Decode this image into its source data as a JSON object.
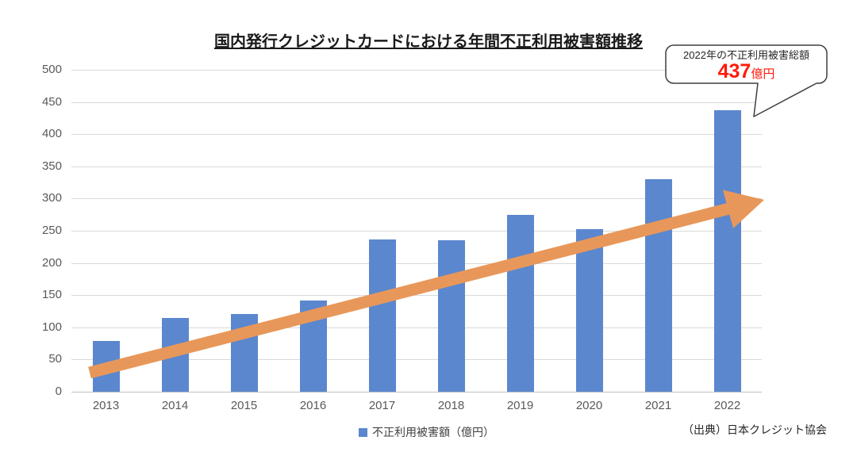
{
  "title": "国内発行クレジットカードにおける年間不正利用被害額推移",
  "callout": {
    "caption": "2022年の不正利用被害総額",
    "value": "437",
    "unit": "億円"
  },
  "legend": {
    "label": "不正利用被害額（億円）"
  },
  "source": "（出典）日本クレジット協会",
  "colors": {
    "background": "#FFFFFF",
    "bar": "#5B87CE",
    "arrow": "#E8975A",
    "grid": "#D9D9D9",
    "baseline": "#C0C0C0",
    "tick_label": "#595959",
    "title_text": "#1A1A1A",
    "legend_text": "#404040",
    "source_text": "#262626",
    "callout_border": "#3F3F3F",
    "callout_caption": "#262626",
    "callout_value": "#FF1A0A"
  },
  "chart_data": {
    "type": "bar",
    "title": "国内発行クレジットカードにおける年間不正利用被害額推移",
    "categories": [
      "2013",
      "2014",
      "2015",
      "2016",
      "2017",
      "2018",
      "2019",
      "2020",
      "2021",
      "2022"
    ],
    "series": [
      {
        "name": "不正利用被害額（億円）",
        "values": [
          78.6,
          114.5,
          120.9,
          142.0,
          236.4,
          235.4,
          274.1,
          253.0,
          330.1,
          436.7
        ]
      }
    ],
    "xlabel": "",
    "ylabel": "",
    "ylim": [
      0,
      500
    ],
    "y_ticks": [
      0,
      50,
      100,
      150,
      200,
      250,
      300,
      350,
      400,
      450,
      500
    ],
    "grid": "horizontal",
    "legend_position": "bottom-center",
    "annotations": [
      {
        "type": "callout",
        "text": "2022年の不正利用被害総額 437億円",
        "target_category": "2022"
      },
      {
        "type": "trend-arrow",
        "direction": "up-right",
        "note": "orange block arrow rising from 2013 to 2022"
      }
    ]
  }
}
